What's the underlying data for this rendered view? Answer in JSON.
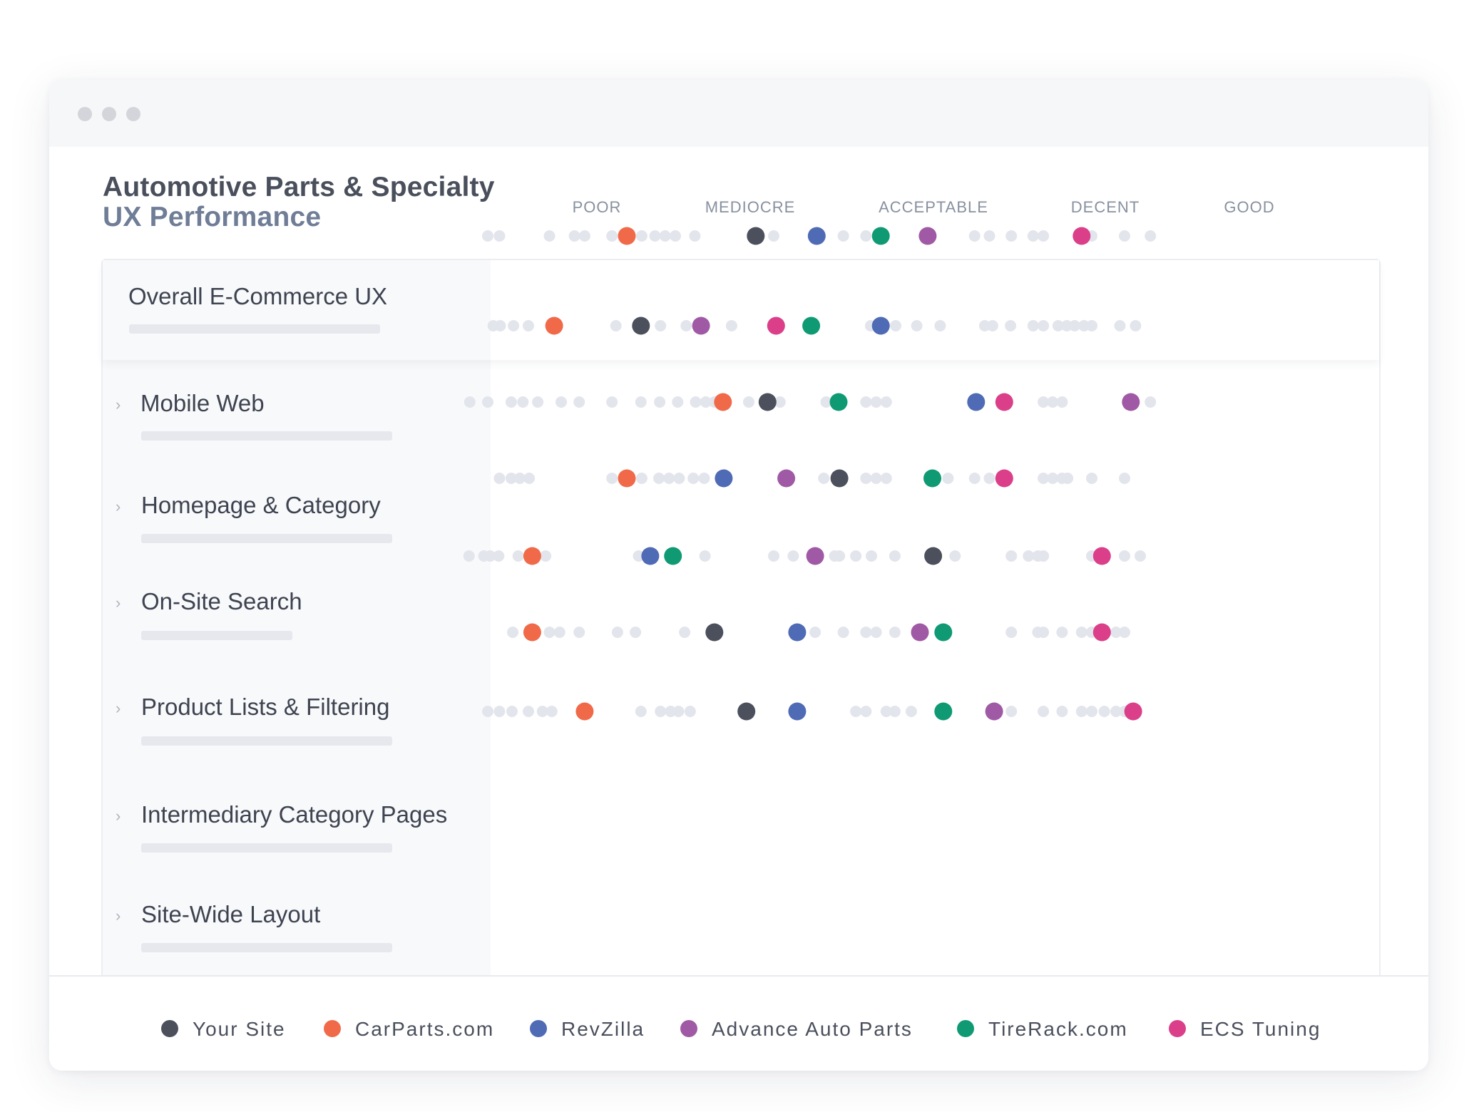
{
  "window": {
    "controls": [
      "close",
      "minimize",
      "maximize"
    ]
  },
  "header": {
    "title": "Automotive Parts & Specialty",
    "subtitle": "UX Performance"
  },
  "chart_data": {
    "type": "scatter",
    "title": "Automotive Parts & Specialty",
    "subtitle": "UX Performance",
    "x_scale": [
      "POOR",
      "MEDIOCRE",
      "ACCEPTABLE",
      "DECENT",
      "GOOD"
    ],
    "legend_position": "bottom",
    "series": [
      {
        "name": "Your Site",
        "color": "#4b505c"
      },
      {
        "name": "CarParts.com",
        "color": "#f06a4a"
      },
      {
        "name": "RevZilla",
        "color": "#4f6bb5"
      },
      {
        "name": "Advance Auto Parts",
        "color": "#a05aa5"
      },
      {
        "name": "TireRack.com",
        "color": "#0f9a74"
      },
      {
        "name": "ECS Tuning",
        "color": "#db3f8a"
      }
    ],
    "rows": [
      {
        "label": "Overall E-Commerce UX",
        "expandable": false,
        "points": {
          "Your Site": 895,
          "CarParts.com": 730,
          "RevZilla": 973,
          "Advance Auto Parts": 1115,
          "TireRack.com": 1055,
          "ECS Tuning": 1312
        },
        "others": [
          552,
          567,
          631,
          663,
          676,
          711,
          749,
          766,
          779,
          792,
          817,
          918,
          1007,
          1036,
          1175,
          1194,
          1222,
          1250,
          1263,
          1325,
          1367,
          1400
        ]
      },
      {
        "label": "Mobile Web",
        "expandable": true,
        "points": {
          "Your Site": 748,
          "CarParts.com": 637,
          "RevZilla": 1055,
          "Advance Auto Parts": 825,
          "TireRack.com": 966,
          "ECS Tuning": 921
        },
        "others": [
          559,
          568,
          585,
          604,
          716,
          773,
          806,
          864,
          1042,
          1074,
          1101,
          1131,
          1188,
          1198,
          1221,
          1250,
          1263,
          1282,
          1293,
          1303,
          1315,
          1325,
          1361,
          1381
        ]
      },
      {
        "label": "Homepage & Category",
        "expandable": true,
        "points": {
          "Your Site": 910,
          "CarParts.com": 853,
          "RevZilla": 1177,
          "Advance Auto Parts": 1375,
          "TireRack.com": 1001,
          "ECS Tuning": 1213
        },
        "others": [
          529,
          552,
          582,
          597,
          616,
          646,
          669,
          711,
          748,
          772,
          795,
          818,
          831,
          842,
          886,
          926,
          985,
          1036,
          1049,
          1062,
          1263,
          1275,
          1287,
          1400
        ]
      },
      {
        "label": "On-Site Search",
        "expandable": true,
        "points": {
          "Your Site": 1002,
          "CarParts.com": 730,
          "RevZilla": 854,
          "Advance Auto Parts": 934,
          "TireRack.com": 1121,
          "ECS Tuning": 1213
        },
        "others": [
          567,
          582,
          593,
          605,
          711,
          749,
          771,
          784,
          797,
          815,
          829,
          982,
          1036,
          1049,
          1062,
          1141,
          1175,
          1194,
          1263,
          1275,
          1287,
          1294,
          1325,
          1367
        ]
      },
      {
        "label": "Product Lists & Filtering",
        "expandable": true,
        "points": {
          "Your Site": 1122,
          "CarParts.com": 609,
          "RevZilla": 760,
          "Advance Auto Parts": 971,
          "TireRack.com": 789,
          "ECS Tuning": 1338
        },
        "others": [
          528,
          547,
          555,
          566,
          591,
          626,
          745,
          830,
          918,
          943,
          996,
          1002,
          1023,
          1043,
          1073,
          1150,
          1222,
          1244,
          1256,
          1263,
          1325,
          1367,
          1387
        ]
      },
      {
        "label": "Intermediary Category Pages",
        "expandable": true,
        "points": {
          "Your Site": 842,
          "CarParts.com": 609,
          "RevZilla": 948,
          "Advance Auto Parts": 1105,
          "TireRack.com": 1135,
          "ECS Tuning": 1338
        },
        "others": [
          584,
          631,
          644,
          669,
          718,
          741,
          804,
          971,
          1007,
          1036,
          1049,
          1073,
          1222,
          1256,
          1263,
          1287,
          1312,
          1325,
          1356,
          1367
        ]
      },
      {
        "label": "Site-Wide Layout",
        "expandable": true,
        "points": {
          "Your Site": 883,
          "CarParts.com": 676,
          "RevZilla": 948,
          "Advance Auto Parts": 1200,
          "TireRack.com": 1135,
          "ECS Tuning": 1378
        },
        "others": [
          552,
          567,
          583,
          604,
          622,
          634,
          748,
          773,
          786,
          796,
          811,
          1023,
          1036,
          1062,
          1073,
          1094,
          1222,
          1263,
          1287,
          1312,
          1325,
          1341,
          1356,
          1367
        ]
      }
    ]
  },
  "legend": [
    {
      "label": "Your Site",
      "color": "#4b505c"
    },
    {
      "label": "CarParts.com",
      "color": "#f06a4a"
    },
    {
      "label": "RevZilla",
      "color": "#4f6bb5"
    },
    {
      "label": "Advance Auto Parts",
      "color": "#a05aa5"
    },
    {
      "label": "TireRack.com",
      "color": "#0f9a74"
    },
    {
      "label": "ECS Tuning",
      "color": "#db3f8a"
    }
  ],
  "colors": {
    "other_dot": "#e3e5ec",
    "label_column_bg": "#f8f9fb"
  }
}
